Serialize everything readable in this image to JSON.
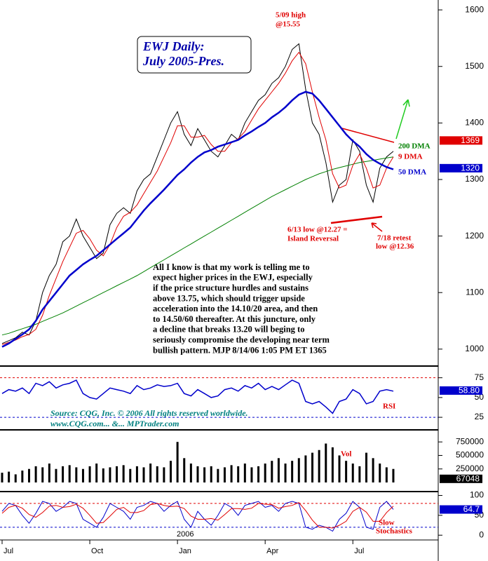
{
  "chart_data": [
    {
      "type": "line",
      "title": [
        "EWJ Daily:",
        "July 2005-Pres."
      ],
      "categories": [
        "Jul",
        null,
        null,
        null,
        null,
        null,
        null,
        null,
        null,
        null,
        null,
        null,
        null,
        "Oct",
        null,
        null,
        null,
        null,
        null,
        null,
        null,
        null,
        null,
        null,
        null,
        null,
        "Jan",
        null,
        null,
        null,
        null,
        null,
        null,
        null,
        null,
        null,
        null,
        null,
        null,
        "Apr",
        null,
        null,
        null,
        null,
        null,
        null,
        null,
        null,
        null,
        null,
        null,
        null,
        "Jul",
        null,
        null,
        null,
        null,
        null,
        null
      ],
      "year_label": "2006",
      "ylim": [
        975,
        1615
      ],
      "yticks": [
        1000,
        1100,
        1200,
        1300,
        1400,
        1500,
        1600
      ],
      "series": [
        {
          "color": "#000000",
          "width": 1,
          "values": [
            1010,
            1015,
            1020,
            1030,
            1025,
            1050,
            1100,
            1130,
            1150,
            1190,
            1200,
            1230,
            1200,
            1180,
            1160,
            1170,
            1220,
            1240,
            1250,
            1240,
            1280,
            1300,
            1310,
            1340,
            1370,
            1400,
            1420,
            1380,
            1360,
            1390,
            1370,
            1350,
            1340,
            1360,
            1380,
            1370,
            1400,
            1420,
            1440,
            1450,
            1470,
            1480,
            1500,
            1530,
            1540,
            1460,
            1400,
            1380,
            1330,
            1260,
            1290,
            1300,
            1370,
            1350,
            1290,
            1260,
            1320,
            1340,
            1350
          ]
        },
        {
          "name": "200 DMA",
          "color": "#008000",
          "width": 1,
          "values": [
            1025,
            1028,
            1032,
            1036,
            1040,
            1044,
            1049,
            1054,
            1059,
            1064,
            1070,
            1076,
            1082,
            1088,
            1094,
            1100,
            1106,
            1112,
            1118,
            1124,
            1130,
            1137,
            1144,
            1151,
            1158,
            1165,
            1172,
            1179,
            1186,
            1193,
            1200,
            1207,
            1214,
            1221,
            1228,
            1235,
            1242,
            1249,
            1256,
            1263,
            1270,
            1276,
            1282,
            1288,
            1294,
            1300,
            1305,
            1310,
            1314,
            1318,
            1321,
            1324,
            1327,
            1330,
            1332,
            1334,
            1336,
            1338,
            1340
          ]
        },
        {
          "name": "9 DMA",
          "color": "#e00000",
          "width": 1,
          "values": [
            1008,
            1012,
            1016,
            1022,
            1026,
            1035,
            1060,
            1095,
            1125,
            1155,
            1180,
            1205,
            1210,
            1195,
            1175,
            1165,
            1185,
            1215,
            1235,
            1242,
            1255,
            1275,
            1295,
            1315,
            1340,
            1365,
            1395,
            1395,
            1375,
            1375,
            1378,
            1362,
            1350,
            1350,
            1365,
            1372,
            1385,
            1405,
            1425,
            1440,
            1455,
            1470,
            1488,
            1510,
            1525,
            1505,
            1455,
            1410,
            1370,
            1310,
            1285,
            1290,
            1325,
            1345,
            1320,
            1285,
            1290,
            1320,
            1340
          ]
        },
        {
          "name": "50 DMA",
          "color": "#0000cc",
          "width": 2.5,
          "values": [
            1004,
            1010,
            1018,
            1026,
            1035,
            1050,
            1070,
            1085,
            1100,
            1115,
            1130,
            1140,
            1150,
            1158,
            1165,
            1175,
            1185,
            1195,
            1205,
            1215,
            1230,
            1245,
            1258,
            1270,
            1282,
            1295,
            1308,
            1318,
            1330,
            1340,
            1348,
            1352,
            1358,
            1362,
            1366,
            1370,
            1378,
            1385,
            1393,
            1400,
            1410,
            1418,
            1428,
            1440,
            1450,
            1455,
            1452,
            1440,
            1425,
            1410,
            1395,
            1380,
            1368,
            1358,
            1345,
            1335,
            1328,
            1322,
            1318
          ]
        }
      ],
      "markers": [
        {
          "value": 1369,
          "color": "#e00000"
        },
        {
          "value": 1320,
          "color": "#0000cc"
        }
      ],
      "annotations": [
        "5/09 high",
        "@15.55",
        "6/13 low @12.27 =",
        "Island Reversal",
        "7/18 retest",
        "low @12.36"
      ],
      "commentary": [
        "All I know is that my work is telling me to",
        "expect higher prices in the EWJ, especially",
        "if the price structure hurdles and sustains",
        "above 13.75, which should trigger upside",
        "acceleration into the 14.10/20 area, and then",
        "to 14.50/60 thereafter. At this juncture, only",
        "a decline that breaks 13.20 will beging to",
        "seriously compromise the developing near term",
        "bullish pattern.  MJP  8/14/06  1:05 PM ET  1365"
      ]
    },
    {
      "type": "line",
      "title": "RSI",
      "source": [
        "Source: CQG, Inc. © 2006 All rights reserved worldwide.",
        "www.CQG.com... &... MPTrader.com"
      ],
      "ylim": [
        10,
        88
      ],
      "yticks": [
        25,
        50,
        75
      ],
      "levels": [
        {
          "value": 75,
          "color": "#e00000"
        },
        {
          "value": 25,
          "color": "#0000cc"
        }
      ],
      "series": [
        {
          "color": "#0000cc",
          "width": 1.5,
          "values": [
            55,
            60,
            58,
            62,
            55,
            68,
            65,
            70,
            62,
            66,
            68,
            72,
            55,
            50,
            48,
            55,
            62,
            60,
            58,
            55,
            65,
            60,
            62,
            66,
            64,
            65,
            68,
            55,
            52,
            60,
            55,
            50,
            52,
            60,
            62,
            58,
            65,
            62,
            68,
            60,
            64,
            60,
            66,
            72,
            68,
            45,
            42,
            45,
            38,
            30,
            45,
            48,
            60,
            55,
            42,
            45,
            58,
            60,
            58
          ]
        }
      ],
      "markers": [
        {
          "value": 58.8,
          "label": "58.80",
          "color": "#0000cc"
        }
      ]
    },
    {
      "type": "bar",
      "title": "Vol",
      "color": "#000000",
      "ylim": [
        0,
        960000
      ],
      "yticks": [
        250000,
        500000,
        750000
      ],
      "values": [
        180000,
        200000,
        150000,
        220000,
        250000,
        300000,
        280000,
        350000,
        250000,
        300000,
        320000,
        280000,
        250000,
        300000,
        350000,
        260000,
        280000,
        300000,
        320000,
        250000,
        300000,
        280000,
        350000,
        300000,
        280000,
        400000,
        750000,
        450000,
        350000,
        300000,
        280000,
        300000,
        250000,
        280000,
        320000,
        300000,
        350000,
        280000,
        300000,
        350000,
        400000,
        450000,
        350000,
        400000,
        450000,
        500000,
        550000,
        600000,
        720000,
        650000,
        500000,
        400000,
        350000,
        300000,
        550000,
        450000,
        350000,
        280000,
        250000
      ],
      "markers": [
        {
          "value": 67048,
          "color": "#000000"
        }
      ]
    },
    {
      "type": "line",
      "title": [
        "Slow",
        "Stochastics"
      ],
      "ylim": [
        -12,
        108
      ],
      "yticks": [
        0,
        50,
        100
      ],
      "levels": [
        {
          "value": 80,
          "color": "#e00000"
        },
        {
          "value": 20,
          "color": "#0000cc"
        }
      ],
      "series": [
        {
          "color": "#0000cc",
          "width": 1,
          "values": [
            60,
            80,
            75,
            50,
            30,
            55,
            85,
            80,
            60,
            70,
            85,
            80,
            40,
            30,
            20,
            45,
            80,
            70,
            60,
            40,
            70,
            75,
            85,
            80,
            60,
            75,
            85,
            40,
            20,
            60,
            40,
            25,
            50,
            80,
            70,
            50,
            75,
            80,
            85,
            70,
            75,
            60,
            80,
            85,
            80,
            20,
            15,
            25,
            20,
            10,
            40,
            55,
            85,
            70,
            20,
            15,
            70,
            85,
            65
          ]
        },
        {
          "color": "#e00000",
          "width": 1,
          "values": [
            55,
            70,
            75,
            68,
            52,
            45,
            57,
            73,
            75,
            70,
            72,
            78,
            68,
            50,
            30,
            32,
            48,
            65,
            70,
            57,
            57,
            62,
            77,
            80,
            75,
            72,
            73,
            67,
            48,
            40,
            40,
            42,
            38,
            52,
            67,
            67,
            65,
            68,
            80,
            78,
            77,
            68,
            72,
            75,
            82,
            62,
            38,
            20,
            20,
            18,
            25,
            35,
            60,
            70,
            58,
            35,
            35,
            57,
            73
          ]
        }
      ],
      "markers": [
        {
          "value": 64.7,
          "color": "#0000cc"
        }
      ]
    }
  ]
}
